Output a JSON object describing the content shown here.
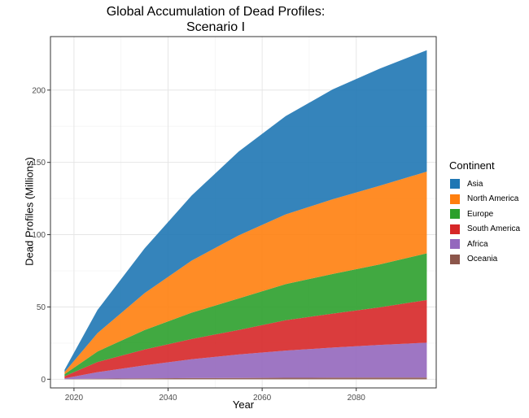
{
  "chart_data": {
    "type": "area",
    "stacked": true,
    "title": [
      "Global Accumulation of Dead Profiles:",
      "Scenario I"
    ],
    "xlabel": "Year",
    "ylabel": "Dead Profiles (Millions)",
    "xlim": [
      2015,
      2097
    ],
    "ylim": [
      -6,
      237
    ],
    "xticks": [
      2020,
      2040,
      2060,
      2080
    ],
    "yticks": [
      0,
      50,
      100,
      150,
      200
    ],
    "grid": true,
    "legend": {
      "title": "Continent",
      "position": "right"
    },
    "x": [
      2018,
      2025,
      2035,
      2045,
      2055,
      2065,
      2075,
      2085,
      2095
    ],
    "series": [
      {
        "name": "Oceania",
        "color": "#8C564B",
        "values": [
          0.1,
          0.4,
          0.6,
          0.8,
          0.9,
          1.0,
          1.1,
          1.15,
          1.2
        ]
      },
      {
        "name": "Africa",
        "color": "#9467BD",
        "values": [
          0.5,
          4.5,
          9.0,
          13.0,
          16.2,
          18.8,
          20.8,
          22.6,
          24.1
        ]
      },
      {
        "name": "South America",
        "color": "#D62728",
        "values": [
          1.5,
          7.0,
          11.0,
          14.0,
          17.0,
          21.0,
          23.5,
          26.0,
          29.5
        ]
      },
      {
        "name": "Europe",
        "color": "#2CA02C",
        "values": [
          1.4,
          7.3,
          13.4,
          18.2,
          21.8,
          25.0,
          27.4,
          29.7,
          32.3
        ]
      },
      {
        "name": "North America",
        "color": "#FF7F0E",
        "values": [
          1.5,
          12.7,
          25.5,
          36.0,
          43.6,
          48.2,
          51.7,
          54.4,
          56.5
        ]
      },
      {
        "name": "Asia",
        "color": "#1F77B4",
        "values": [
          1.5,
          16.0,
          31.0,
          45.0,
          58.0,
          68.0,
          76.0,
          81.0,
          84.0
        ]
      }
    ],
    "legend_order": [
      "Asia",
      "North America",
      "Europe",
      "South America",
      "Africa",
      "Oceania"
    ]
  }
}
